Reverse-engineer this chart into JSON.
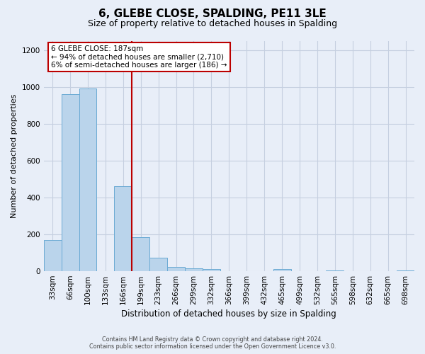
{
  "title": "6, GLEBE CLOSE, SPALDING, PE11 3LE",
  "subtitle": "Size of property relative to detached houses in Spalding",
  "xlabel": "Distribution of detached houses by size in Spalding",
  "ylabel": "Number of detached properties",
  "footer_line1": "Contains HM Land Registry data © Crown copyright and database right 2024.",
  "footer_line2": "Contains public sector information licensed under the Open Government Licence v3.0.",
  "annotation_line1": "6 GLEBE CLOSE: 187sqm",
  "annotation_line2": "← 94% of detached houses are smaller (2,710)",
  "annotation_line3": "6% of semi-detached houses are larger (186) →",
  "bar_color": "#bad4eb",
  "bar_edge_color": "#6aaad4",
  "vline_color": "#bb0000",
  "annotation_box_edgecolor": "#bb0000",
  "categories": [
    "33sqm",
    "66sqm",
    "100sqm",
    "133sqm",
    "166sqm",
    "199sqm",
    "233sqm",
    "266sqm",
    "299sqm",
    "332sqm",
    "366sqm",
    "399sqm",
    "432sqm",
    "465sqm",
    "499sqm",
    "532sqm",
    "565sqm",
    "598sqm",
    "632sqm",
    "665sqm",
    "698sqm"
  ],
  "values": [
    170,
    960,
    990,
    0,
    460,
    185,
    75,
    25,
    15,
    10,
    0,
    0,
    0,
    12,
    0,
    0,
    5,
    0,
    0,
    0,
    5
  ],
  "vline_after_index": 4,
  "ylim": [
    0,
    1250
  ],
  "yticks": [
    0,
    200,
    400,
    600,
    800,
    1000,
    1200
  ],
  "bg_color": "#e8eef8",
  "grid_color": "#c5cfe0",
  "title_fontsize": 11,
  "subtitle_fontsize": 9,
  "ylabel_fontsize": 8,
  "xlabel_fontsize": 8.5
}
